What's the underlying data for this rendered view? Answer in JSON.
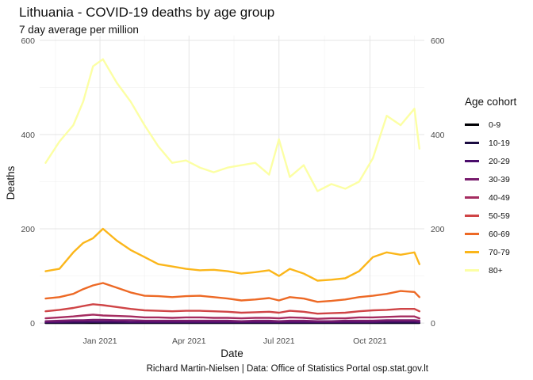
{
  "chart_data": {
    "type": "line",
    "title": "Lithuania - COVID-19 deaths by age group",
    "subtitle": "7 day average per million",
    "xlabel": "Date",
    "ylabel": "Deaths",
    "caption": "Richard Martin-Nielsen | Data: Office of Statistics Portal osp.stat.gov.lt",
    "legend_title": "Age cohort",
    "legend_position": "right",
    "grid": true,
    "secondary_y_axis": true,
    "xlim": [
      "2020-11-01",
      "2021-11-25"
    ],
    "ylim": [
      -15,
      610
    ],
    "x_ticks": [
      "2021-01-01",
      "2021-04-01",
      "2021-07-01",
      "2021-10-01"
    ],
    "x_tick_labels": [
      "Jan 2021",
      "Apr 2021",
      "Jul 2021",
      "Oct 2021"
    ],
    "y_ticks": [
      0,
      200,
      400,
      600
    ],
    "x": [
      "2020-11-07",
      "2020-11-21",
      "2020-12-05",
      "2020-12-15",
      "2020-12-25",
      "2021-01-04",
      "2021-01-18",
      "2021-02-01",
      "2021-02-15",
      "2021-03-01",
      "2021-03-15",
      "2021-03-29",
      "2021-04-12",
      "2021-04-26",
      "2021-05-10",
      "2021-05-24",
      "2021-06-07",
      "2021-06-21",
      "2021-07-01",
      "2021-07-12",
      "2021-07-26",
      "2021-08-09",
      "2021-08-23",
      "2021-09-06",
      "2021-09-20",
      "2021-10-04",
      "2021-10-18",
      "2021-11-01",
      "2021-11-15",
      "2021-11-20"
    ],
    "series": [
      {
        "name": "0-9",
        "color": "#000004",
        "values": [
          0,
          0,
          0,
          0,
          0,
          0,
          0,
          0,
          0,
          0,
          0,
          0,
          0,
          0,
          0,
          0,
          0,
          0,
          0,
          0,
          0,
          0,
          0,
          0,
          0,
          0,
          0,
          0,
          0,
          0
        ]
      },
      {
        "name": "10-19",
        "color": "#1b0c41",
        "values": [
          1,
          1,
          1,
          1,
          2,
          1,
          1,
          1,
          1,
          1,
          1,
          1,
          1,
          1,
          1,
          1,
          1,
          1,
          1,
          1,
          1,
          1,
          1,
          1,
          1,
          1,
          1,
          1,
          1,
          1
        ]
      },
      {
        "name": "20-29",
        "color": "#4a0c6b",
        "values": [
          2,
          2,
          3,
          3,
          3,
          3,
          3,
          2,
          2,
          2,
          2,
          2,
          2,
          2,
          2,
          2,
          2,
          2,
          2,
          2,
          2,
          2,
          2,
          2,
          2,
          2,
          3,
          3,
          3,
          2
        ]
      },
      {
        "name": "30-39",
        "color": "#781c6d",
        "values": [
          4,
          5,
          6,
          6,
          7,
          7,
          6,
          6,
          5,
          5,
          5,
          5,
          5,
          5,
          5,
          4,
          5,
          5,
          4,
          5,
          5,
          4,
          4,
          5,
          5,
          5,
          6,
          6,
          6,
          5
        ]
      },
      {
        "name": "40-49",
        "color": "#a52c60",
        "values": [
          10,
          12,
          14,
          16,
          18,
          16,
          15,
          14,
          12,
          12,
          11,
          12,
          12,
          11,
          11,
          10,
          11,
          11,
          10,
          12,
          11,
          9,
          10,
          10,
          12,
          12,
          13,
          14,
          14,
          10
        ]
      },
      {
        "name": "50-59",
        "color": "#cf4446",
        "values": [
          25,
          28,
          32,
          36,
          40,
          38,
          34,
          30,
          27,
          26,
          25,
          26,
          26,
          25,
          24,
          22,
          23,
          24,
          22,
          26,
          24,
          20,
          21,
          22,
          25,
          27,
          28,
          30,
          30,
          25
        ]
      },
      {
        "name": "60-69",
        "color": "#ed6925",
        "values": [
          52,
          55,
          62,
          72,
          80,
          85,
          75,
          65,
          58,
          57,
          55,
          57,
          58,
          55,
          52,
          48,
          50,
          53,
          48,
          55,
          52,
          45,
          47,
          50,
          55,
          58,
          62,
          68,
          66,
          55
        ]
      },
      {
        "name": "70-79",
        "color": "#fbb61a",
        "values": [
          110,
          115,
          150,
          170,
          180,
          200,
          175,
          155,
          140,
          125,
          120,
          115,
          112,
          113,
          110,
          105,
          108,
          112,
          100,
          115,
          105,
          90,
          92,
          95,
          110,
          140,
          150,
          145,
          150,
          125
        ]
      },
      {
        "name": "80+",
        "color": "#fcffa4",
        "values": [
          340,
          385,
          420,
          470,
          545,
          560,
          510,
          470,
          420,
          375,
          340,
          345,
          330,
          320,
          330,
          335,
          340,
          315,
          390,
          310,
          335,
          280,
          295,
          285,
          300,
          350,
          440,
          420,
          455,
          370
        ]
      }
    ]
  }
}
